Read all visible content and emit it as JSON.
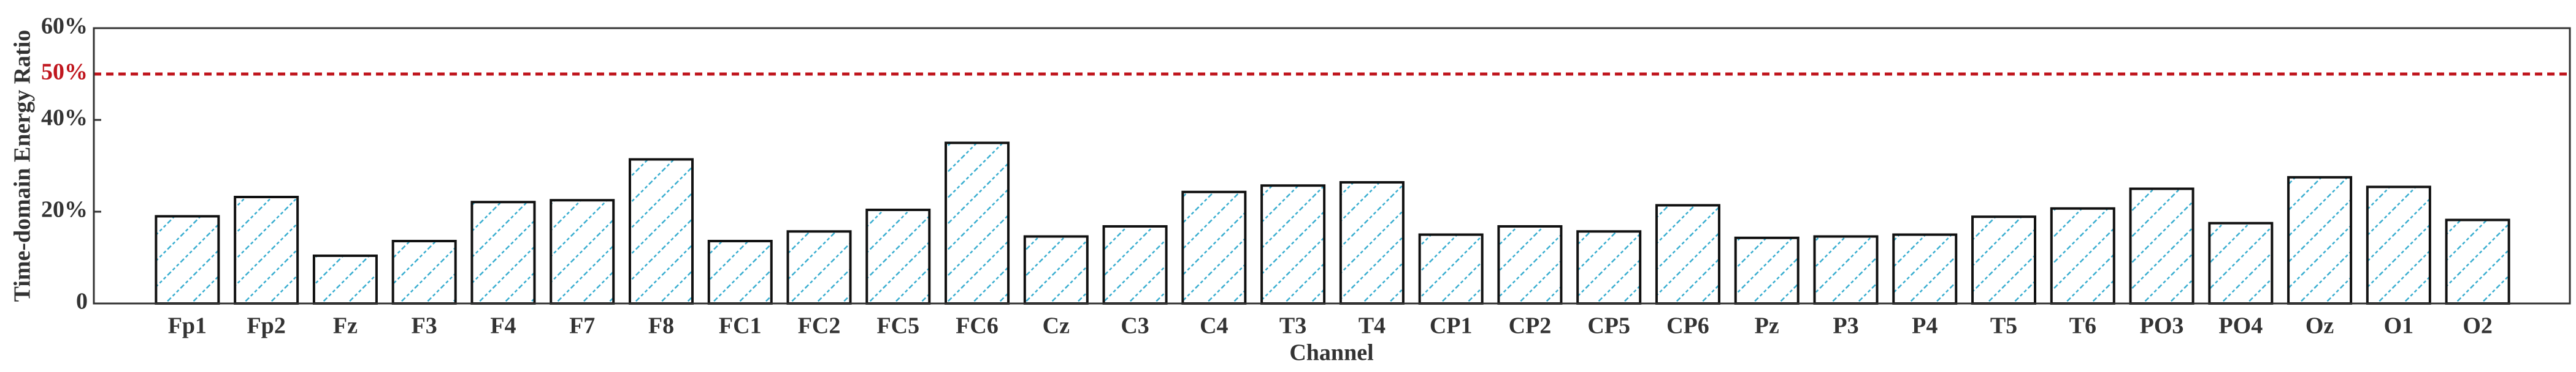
{
  "chart_data": {
    "type": "bar",
    "x_label": "Channel",
    "y_label": "Time-domain Energy Ratio",
    "categories": [
      "Fp1",
      "Fp2",
      "Fz",
      "F3",
      "F4",
      "F7",
      "F8",
      "FC1",
      "FC2",
      "FC5",
      "FC6",
      "Cz",
      "C3",
      "C4",
      "T3",
      "T4",
      "CP1",
      "CP2",
      "CP5",
      "CP6",
      "Pz",
      "P3",
      "P4",
      "T5",
      "T6",
      "PO3",
      "PO4",
      "Oz",
      "O1",
      "O2"
    ],
    "values": [
      19,
      23.2,
      10.4,
      13.6,
      22.1,
      22.5,
      31.4,
      13.6,
      15.7,
      20.4,
      35,
      14.6,
      16.8,
      24.3,
      25.7,
      26.4,
      15,
      16.8,
      15.7,
      21.4,
      14.3,
      14.6,
      15,
      18.9,
      20.7,
      25,
      17.5,
      27.5,
      25.4,
      18.2
    ],
    "color": "#3aaed0",
    "ylim": [
      0,
      60
    ],
    "yticks": [
      0,
      {
        "value": 20,
        "label": "20%"
      },
      {
        "value": 40,
        "label": "40%"
      },
      {
        "value": 60,
        "label": "60%"
      }
    ],
    "reference_line": {
      "value": 50,
      "label": "50%",
      "color": "#c0161e"
    }
  }
}
